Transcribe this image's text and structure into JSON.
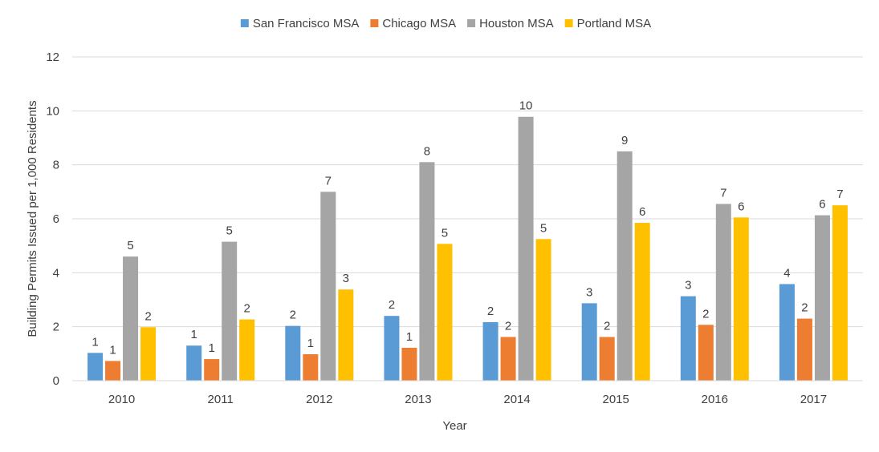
{
  "chart_data": {
    "type": "bar",
    "title": "",
    "xlabel": "Year",
    "ylabel": "Building Permits Issued per 1,000 Residents",
    "ylim": [
      0,
      12
    ],
    "yticks": [
      0,
      2,
      4,
      6,
      8,
      10,
      12
    ],
    "grid": true,
    "legend_position": "top",
    "categories": [
      "2010",
      "2011",
      "2012",
      "2013",
      "2014",
      "2015",
      "2016",
      "2017"
    ],
    "series": [
      {
        "name": "San Francisco MSA",
        "color": "#5B9BD5",
        "values": [
          1.03,
          1.3,
          2.03,
          2.4,
          2.17,
          2.87,
          3.13,
          3.58
        ],
        "labels": [
          "1",
          "1",
          "2",
          "2",
          "2",
          "3",
          "3",
          "4"
        ]
      },
      {
        "name": "Chicago MSA",
        "color": "#ED7D31",
        "values": [
          0.73,
          0.8,
          0.98,
          1.22,
          1.62,
          1.62,
          2.07,
          2.3
        ],
        "labels": [
          "1",
          "1",
          "1",
          "1",
          "2",
          "2",
          "2",
          "2"
        ]
      },
      {
        "name": "Houston MSA",
        "color": "#A5A5A5",
        "values": [
          4.6,
          5.15,
          7.0,
          8.1,
          9.78,
          8.5,
          6.55,
          6.13
        ],
        "labels": [
          "5",
          "5",
          "7",
          "8",
          "10",
          "9",
          "7",
          "6"
        ]
      },
      {
        "name": "Portland MSA",
        "color": "#FFC000",
        "values": [
          1.98,
          2.27,
          3.38,
          5.07,
          5.25,
          5.85,
          6.05,
          6.5
        ],
        "labels": [
          "2",
          "2",
          "3",
          "5",
          "5",
          "6",
          "6",
          "7"
        ]
      }
    ]
  }
}
